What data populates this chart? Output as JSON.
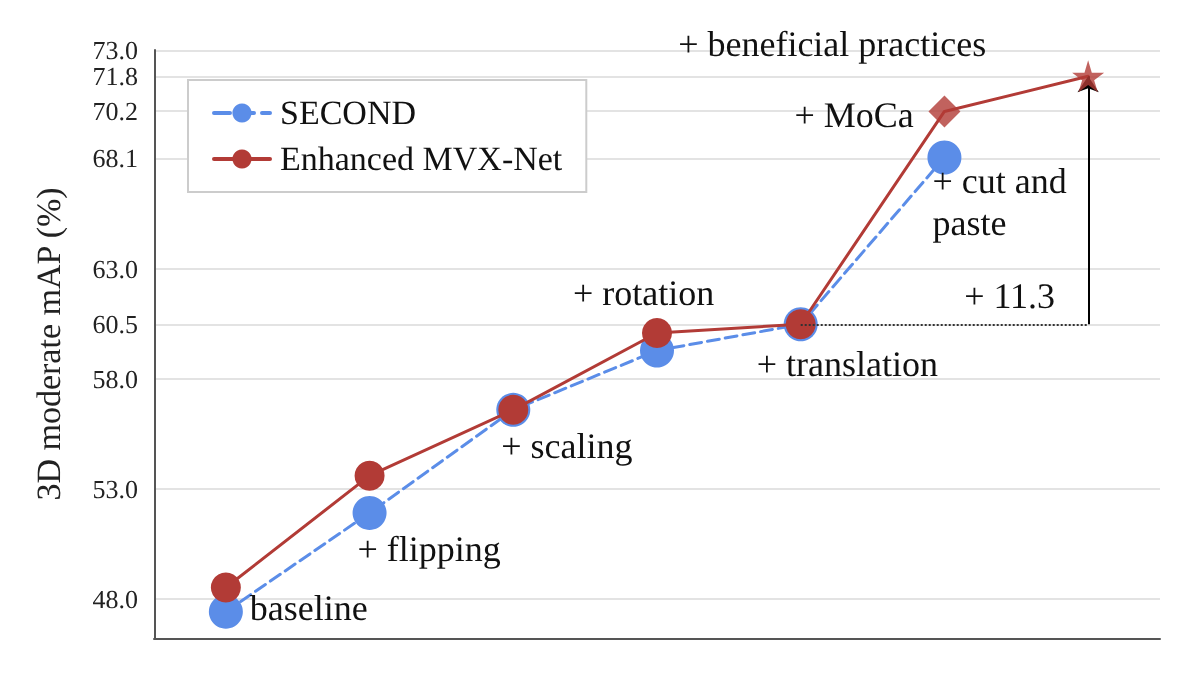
{
  "chart_data": {
    "type": "line",
    "ylabel": "3D moderate mAP (%)",
    "categories": [
      null,
      null,
      null,
      null,
      null,
      null,
      null
    ],
    "series": [
      {
        "name": "SECOND",
        "color": "#5b8de8",
        "line_style": "dashed",
        "marker": "circle",
        "values": [
          47.4,
          51.9,
          56.6,
          59.3,
          60.5,
          68.1,
          null
        ]
      },
      {
        "name": "Enhanced MVX-Net",
        "color": "#b23b36",
        "line_style": "solid",
        "marker": "circle",
        "values": [
          48.5,
          53.6,
          56.6,
          60.1,
          60.5,
          70.2,
          71.8
        ]
      },
      {
        "type": "scatter",
        "color": "#b23b36",
        "marker": "diamond",
        "values": [
          null,
          null,
          null,
          null,
          null,
          70.2,
          null
        ]
      },
      {
        "type": "scatter",
        "color": "#b23b36",
        "marker": "star",
        "values": [
          null,
          null,
          null,
          null,
          null,
          null,
          71.8
        ]
      }
    ],
    "ylim": [
      46.2,
      73
    ],
    "yticks": [
      {
        "value": 48,
        "label": "48.0"
      },
      {
        "value": 53,
        "label": "53.0"
      },
      {
        "value": 58,
        "label": "58.0"
      },
      {
        "value": 60.5,
        "label": "60.5"
      },
      {
        "value": 63,
        "label": "63.0"
      },
      {
        "value": 68.1,
        "label": "68.1"
      },
      {
        "value": 70.2,
        "label": "70.2"
      },
      {
        "value": 71.8,
        "label": "71.8"
      },
      {
        "value": 73,
        "label": "73.0"
      }
    ],
    "grid": "y",
    "legend": "top left",
    "tick_labels": "y",
    "annotations": [
      "baseline",
      "+ flipping",
      "+ scaling",
      "+ rotation",
      "+ translation",
      "+ cut and\npaste",
      "+ MoCa",
      "+ beneficial practices",
      "+ 11.3"
    ]
  }
}
